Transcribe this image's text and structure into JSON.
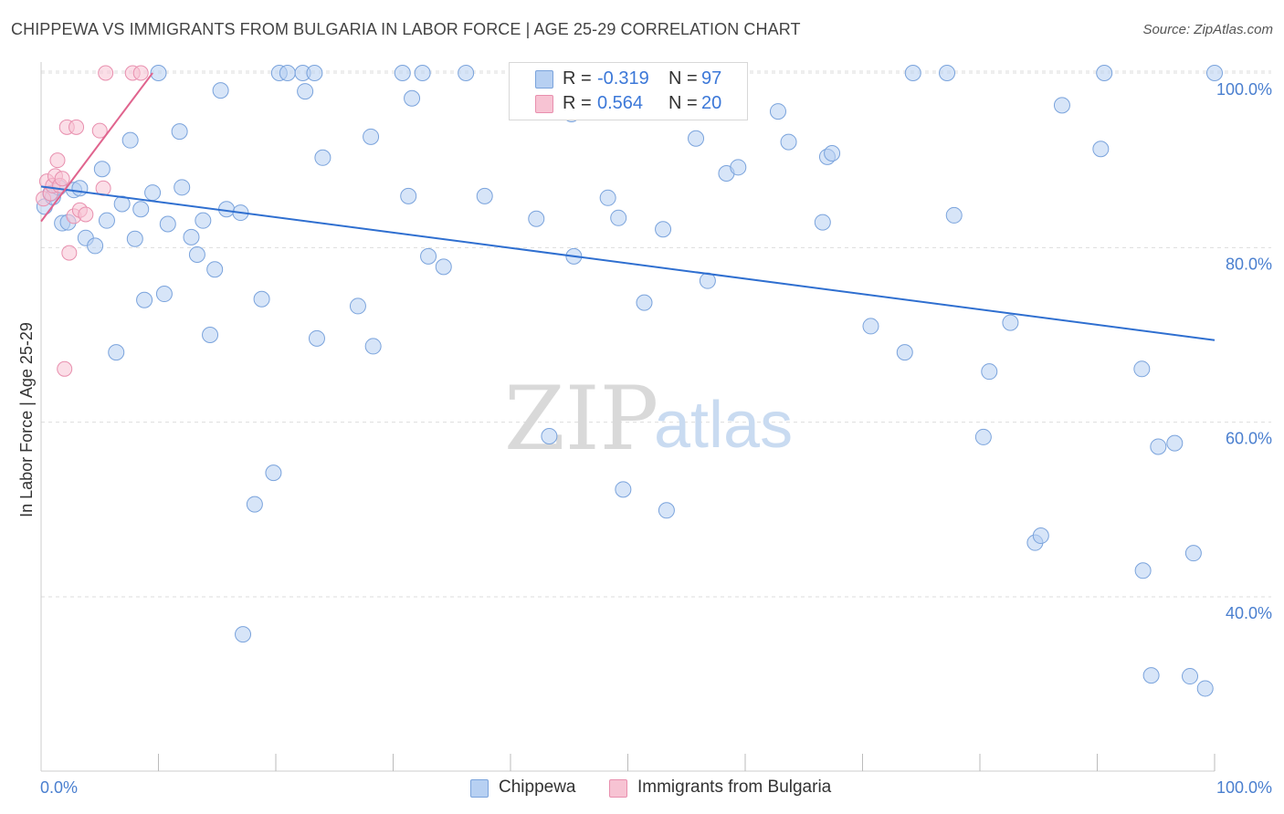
{
  "title": "CHIPPEWA VS IMMIGRANTS FROM BULGARIA IN LABOR FORCE | AGE 25-29 CORRELATION CHART",
  "source": "Source: ZipAtlas.com",
  "watermark": {
    "zip": "ZIP",
    "atlas": "atlas"
  },
  "colors": {
    "blue_fill": "#b7d0f2",
    "blue_stroke": "#7aa3dc",
    "blue_line": "#2f6fd0",
    "pink_fill": "#f7c3d3",
    "pink_stroke": "#e88fae",
    "pink_line": "#e0648e",
    "tick_text": "#4a7fcf",
    "grid": "#dddddd"
  },
  "legend": {
    "rows": [
      {
        "r_label": "R =",
        "r_value": "-0.319",
        "n_label": "N =",
        "n_value": "97"
      },
      {
        "r_label": "R =",
        "r_value": "0.564",
        "n_label": "N =",
        "n_value": "20"
      }
    ]
  },
  "bottom_legend": {
    "series1": "Chippewa",
    "series2": "Immigrants from Bulgaria"
  },
  "chart_data": {
    "type": "scatter",
    "title": "CHIPPEWA VS IMMIGRANTS FROM BULGARIA IN LABOR FORCE | AGE 25-29 CORRELATION CHART",
    "xlabel": "",
    "ylabel": "In Labor Force | Age 25-29",
    "xlim": [
      0,
      100
    ],
    "ylim": [
      20,
      102
    ],
    "x_tick_labels": [
      "0.0%",
      "100.0%"
    ],
    "y_ticks": [
      40,
      60,
      80,
      100
    ],
    "y_tick_labels": [
      "40.0%",
      "60.0%",
      "80.0%",
      "100.0%"
    ],
    "grid": "horizontal dashed",
    "legend_position": "top-center",
    "series": [
      {
        "name": "Chippewa",
        "color": "#b7d0f2",
        "r": -0.319,
        "n": 97,
        "trend": {
          "x": [
            0,
            100
          ],
          "y": [
            87.0,
            69.4
          ]
        },
        "points": [
          [
            0.3,
            84.7
          ],
          [
            0.8,
            86.2
          ],
          [
            1.0,
            85.8
          ],
          [
            1.5,
            86.9
          ],
          [
            1.8,
            82.8
          ],
          [
            2.3,
            82.9
          ],
          [
            2.8,
            86.6
          ],
          [
            3.3,
            86.8
          ],
          [
            3.8,
            81.1
          ],
          [
            4.6,
            80.2
          ],
          [
            5.2,
            89.0
          ],
          [
            5.6,
            83.1
          ],
          [
            6.4,
            68.0
          ],
          [
            6.9,
            85.0
          ],
          [
            7.6,
            92.3
          ],
          [
            8.0,
            81.0
          ],
          [
            8.5,
            84.4
          ],
          [
            8.8,
            74.0
          ],
          [
            9.5,
            86.3
          ],
          [
            10.0,
            100.0
          ],
          [
            10.5,
            74.7
          ],
          [
            10.8,
            82.7
          ],
          [
            11.8,
            93.3
          ],
          [
            12.0,
            86.9
          ],
          [
            12.8,
            81.2
          ],
          [
            13.3,
            79.2
          ],
          [
            13.8,
            83.1
          ],
          [
            14.4,
            70.0
          ],
          [
            14.8,
            77.5
          ],
          [
            15.3,
            98.0
          ],
          [
            15.8,
            84.4
          ],
          [
            17.0,
            84.0
          ],
          [
            17.2,
            35.7
          ],
          [
            18.2,
            50.6
          ],
          [
            18.8,
            74.1
          ],
          [
            19.8,
            54.2
          ],
          [
            20.3,
            100.0
          ],
          [
            21.0,
            100.0
          ],
          [
            22.3,
            100.0
          ],
          [
            22.5,
            97.9
          ],
          [
            23.3,
            100.0
          ],
          [
            23.5,
            69.6
          ],
          [
            24.0,
            90.3
          ],
          [
            27.0,
            73.3
          ],
          [
            28.1,
            92.7
          ],
          [
            28.3,
            68.7
          ],
          [
            30.8,
            100.0
          ],
          [
            31.3,
            85.9
          ],
          [
            31.6,
            97.1
          ],
          [
            32.5,
            100.0
          ],
          [
            33.0,
            79.0
          ],
          [
            34.3,
            77.8
          ],
          [
            36.2,
            100.0
          ],
          [
            37.8,
            85.9
          ],
          [
            42.2,
            83.3
          ],
          [
            43.3,
            58.4
          ],
          [
            45.2,
            95.3
          ],
          [
            45.4,
            79.0
          ],
          [
            48.3,
            85.7
          ],
          [
            49.2,
            83.4
          ],
          [
            49.6,
            52.3
          ],
          [
            50.3,
            100.0
          ],
          [
            51.4,
            73.7
          ],
          [
            53.0,
            82.1
          ],
          [
            53.3,
            49.9
          ],
          [
            55.8,
            92.5
          ],
          [
            56.8,
            76.2
          ],
          [
            58.4,
            88.5
          ],
          [
            59.4,
            89.2
          ],
          [
            62.8,
            95.6
          ],
          [
            63.7,
            92.1
          ],
          [
            66.6,
            82.9
          ],
          [
            67.0,
            90.4
          ],
          [
            67.4,
            90.8
          ],
          [
            70.7,
            71.0
          ],
          [
            73.6,
            68.0
          ],
          [
            74.3,
            100.0
          ],
          [
            77.2,
            100.0
          ],
          [
            77.8,
            83.7
          ],
          [
            80.3,
            58.3
          ],
          [
            80.8,
            65.8
          ],
          [
            82.6,
            71.4
          ],
          [
            84.7,
            46.2
          ],
          [
            85.2,
            47.0
          ],
          [
            87.0,
            96.3
          ],
          [
            90.3,
            91.3
          ],
          [
            90.6,
            100.0
          ],
          [
            93.8,
            66.1
          ],
          [
            93.9,
            43.0
          ],
          [
            95.2,
            57.2
          ],
          [
            96.6,
            57.6
          ],
          [
            97.9,
            30.9
          ],
          [
            98.2,
            45.0
          ],
          [
            99.2,
            29.5
          ],
          [
            100.0,
            100.0
          ],
          [
            94.6,
            31.0
          ],
          [
            55.6,
            100.0
          ]
        ]
      },
      {
        "name": "Immigrants from Bulgaria",
        "color": "#f7c3d3",
        "r": 0.564,
        "n": 20,
        "trend": {
          "x": [
            0,
            9.5
          ],
          "y": [
            83.0,
            100.0
          ]
        },
        "points": [
          [
            0.2,
            85.6
          ],
          [
            0.5,
            87.6
          ],
          [
            0.8,
            86.2
          ],
          [
            1.0,
            87.1
          ],
          [
            1.2,
            88.2
          ],
          [
            1.4,
            90.0
          ],
          [
            1.6,
            87.1
          ],
          [
            1.8,
            87.9
          ],
          [
            2.0,
            66.1
          ],
          [
            2.2,
            93.8
          ],
          [
            2.4,
            79.4
          ],
          [
            2.8,
            83.6
          ],
          [
            3.0,
            93.8
          ],
          [
            3.3,
            84.3
          ],
          [
            3.8,
            83.8
          ],
          [
            5.0,
            93.4
          ],
          [
            5.3,
            86.8
          ],
          [
            5.5,
            100.0
          ],
          [
            7.8,
            100.0
          ],
          [
            8.5,
            100.0
          ]
        ]
      }
    ]
  }
}
